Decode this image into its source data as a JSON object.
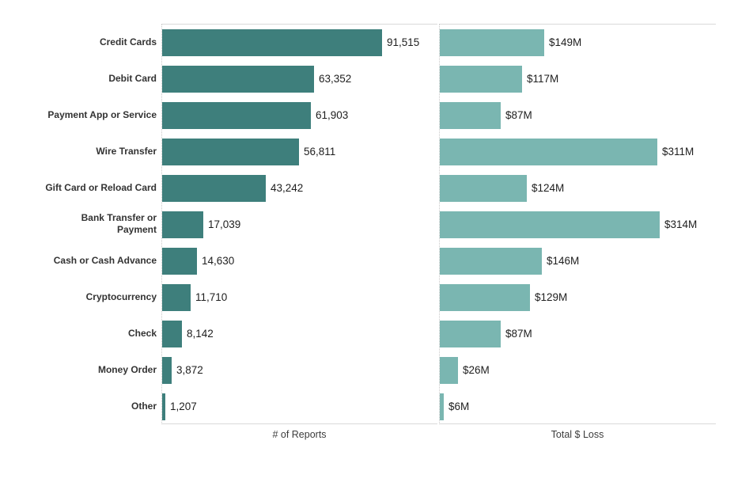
{
  "chart_data": {
    "type": "bar",
    "orientation": "horizontal",
    "title": "",
    "legend": "none",
    "gridlines": "none",
    "pane_border_color": "#d9d9d9",
    "zero_line_style": "dotted",
    "background": "#ffffff",
    "categories": [
      "Credit Cards",
      "Debit Card",
      "Payment App or Service",
      "Wire Transfer",
      "Gift Card or Reload Card",
      "Bank Transfer or\nPayment",
      "Cash or Cash Advance",
      "Cryptocurrency",
      "Check",
      "Money Order",
      "Other"
    ],
    "series": [
      {
        "name": "# of Reports",
        "axis_label": "# of Reports",
        "color": "#3e7f7c",
        "max_value": 91515,
        "values": [
          91515,
          63352,
          61903,
          56811,
          43242,
          17039,
          14630,
          11710,
          8142,
          3872,
          1207
        ],
        "value_labels": [
          "91,515",
          "63,352",
          "61,903",
          "56,811",
          "43,242",
          "17,039",
          "14,630",
          "11,710",
          "8,142",
          "3,872",
          "1,207"
        ]
      },
      {
        "name": "Total $ Loss",
        "axis_label": "Total $ Loss",
        "color": "#7ab6b1",
        "max_value": 314,
        "values": [
          149,
          117,
          87,
          311,
          124,
          314,
          146,
          129,
          87,
          26,
          6
        ],
        "value_labels": [
          "$149M",
          "$117M",
          "$87M",
          "$311M",
          "$124M",
          "$314M",
          "$146M",
          "$129M",
          "$87M",
          "$26M",
          "$6M"
        ]
      }
    ],
    "styles": {
      "category_label_color": "#333333",
      "value_label_color": "#1e1e1e",
      "axis_label_color": "#3c3c3c"
    }
  }
}
